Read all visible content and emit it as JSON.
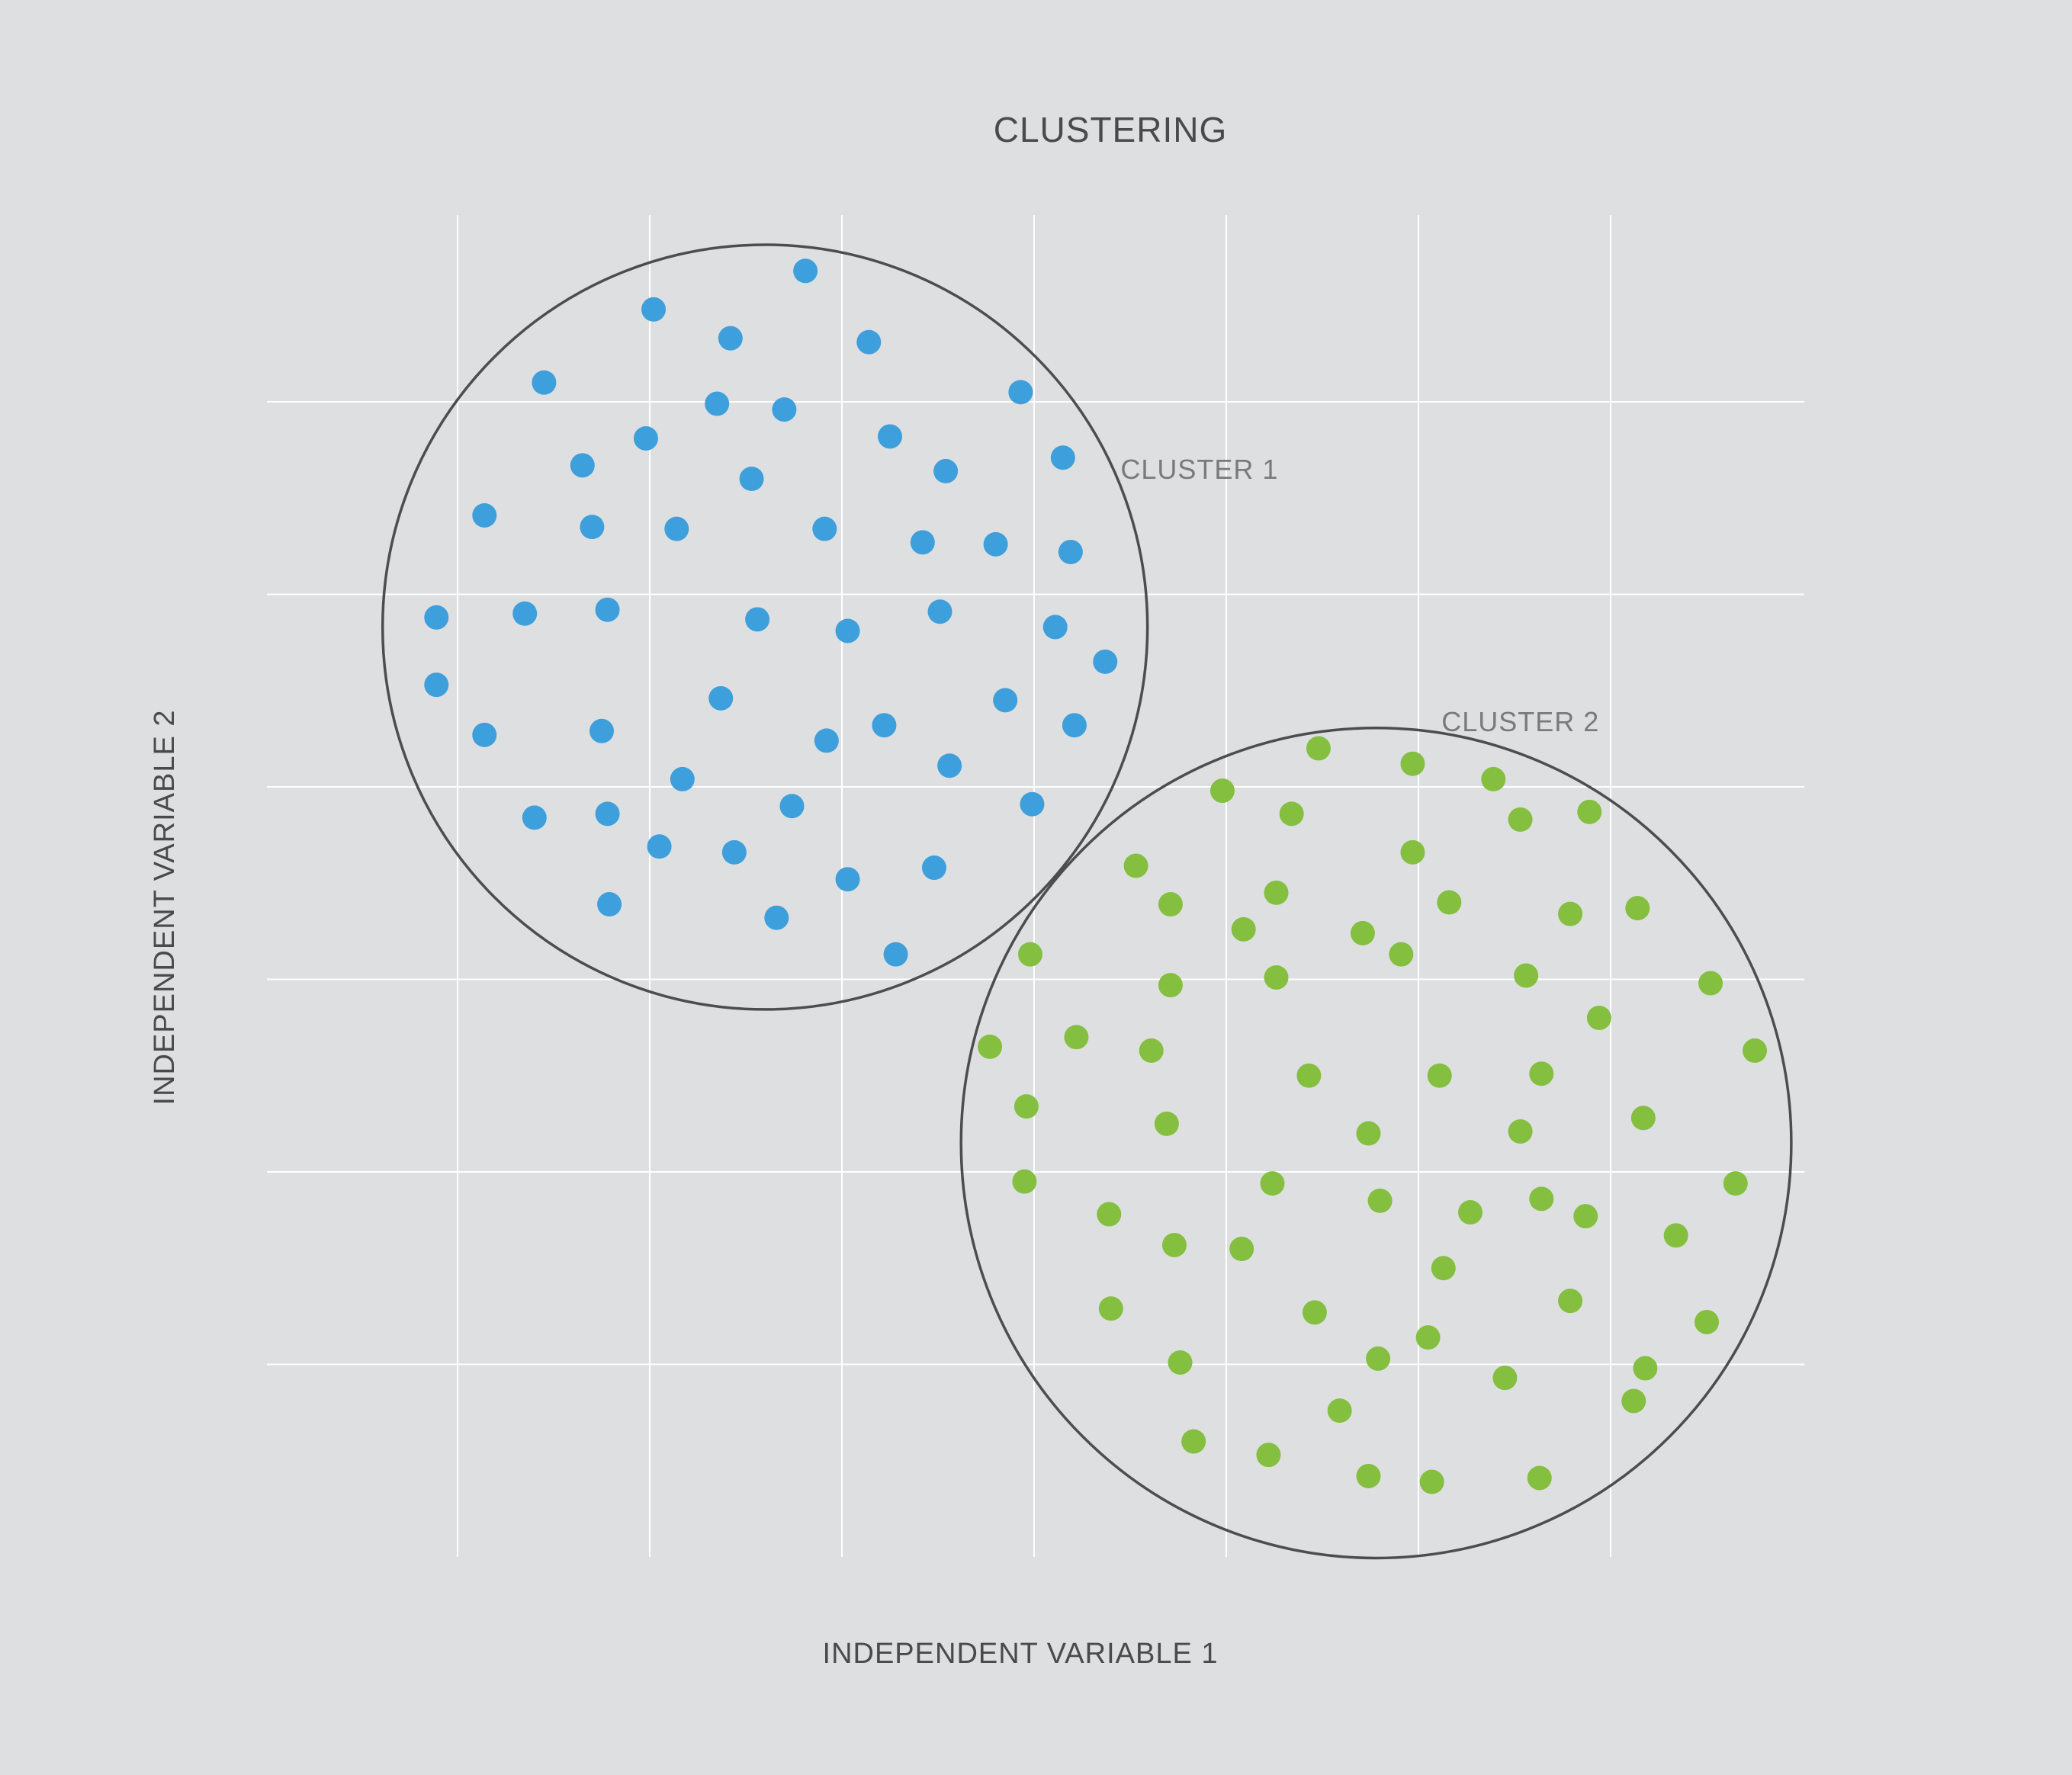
{
  "chart_data": {
    "type": "scatter",
    "title": "CLUSTERING",
    "xlabel": "INDEPENDENT VARIABLE 1",
    "ylabel": "INDEPENDENT VARIABLE 2",
    "xlim": [
      0,
      8
    ],
    "ylim": [
      0,
      7
    ],
    "grid": true,
    "tick_labels_shown": false,
    "series": [
      {
        "name": "CLUSTER 1",
        "color": "#3d9fdb",
        "points": [
          [
            2.81,
            6.68
          ],
          [
            2.02,
            6.48
          ],
          [
            2.42,
            6.33
          ],
          [
            3.14,
            6.31
          ],
          [
            1.45,
            6.1
          ],
          [
            2.35,
            5.99
          ],
          [
            2.7,
            5.96
          ],
          [
            3.93,
            6.05
          ],
          [
            1.98,
            5.81
          ],
          [
            3.25,
            5.82
          ],
          [
            1.65,
            5.67
          ],
          [
            3.54,
            5.64
          ],
          [
            2.53,
            5.6
          ],
          [
            4.15,
            5.71
          ],
          [
            1.14,
            5.41
          ],
          [
            1.7,
            5.35
          ],
          [
            2.14,
            5.34
          ],
          [
            2.91,
            5.34
          ],
          [
            3.42,
            5.27
          ],
          [
            3.8,
            5.26
          ],
          [
            4.19,
            5.22
          ],
          [
            0.89,
            4.88
          ],
          [
            1.35,
            4.9
          ],
          [
            1.78,
            4.92
          ],
          [
            2.56,
            4.87
          ],
          [
            3.03,
            4.81
          ],
          [
            3.51,
            4.91
          ],
          [
            4.11,
            4.83
          ],
          [
            4.37,
            4.65
          ],
          [
            0.89,
            4.53
          ],
          [
            2.37,
            4.46
          ],
          [
            1.14,
            4.27
          ],
          [
            1.75,
            4.29
          ],
          [
            2.92,
            4.24
          ],
          [
            3.22,
            4.32
          ],
          [
            3.85,
            4.45
          ],
          [
            4.21,
            4.32
          ],
          [
            2.17,
            4.04
          ],
          [
            3.56,
            4.11
          ],
          [
            1.4,
            3.84
          ],
          [
            1.78,
            3.86
          ],
          [
            2.74,
            3.9
          ],
          [
            3.99,
            3.91
          ],
          [
            2.05,
            3.69
          ],
          [
            2.44,
            3.66
          ],
          [
            3.03,
            3.52
          ],
          [
            3.48,
            3.58
          ],
          [
            1.79,
            3.39
          ],
          [
            2.66,
            3.32
          ],
          [
            3.28,
            3.13
          ]
        ]
      },
      {
        "name": "CLUSTER 2",
        "color": "#84bf3f",
        "points": [
          [
            5.48,
            4.2
          ],
          [
            5.97,
            4.12
          ],
          [
            6.39,
            4.04
          ],
          [
            4.98,
            3.98
          ],
          [
            5.34,
            3.86
          ],
          [
            6.53,
            3.83
          ],
          [
            6.89,
            3.87
          ],
          [
            5.97,
            3.66
          ],
          [
            4.53,
            3.59
          ],
          [
            5.26,
            3.45
          ],
          [
            6.16,
            3.4
          ],
          [
            6.79,
            3.34
          ],
          [
            7.14,
            3.37
          ],
          [
            4.71,
            3.39
          ],
          [
            5.09,
            3.26
          ],
          [
            5.71,
            3.24
          ],
          [
            3.98,
            3.13
          ],
          [
            5.26,
            3.01
          ],
          [
            5.91,
            3.13
          ],
          [
            6.56,
            3.02
          ],
          [
            7.52,
            2.98
          ],
          [
            4.71,
            2.97
          ],
          [
            6.94,
            2.8
          ],
          [
            3.77,
            2.65
          ],
          [
            4.22,
            2.7
          ],
          [
            4.61,
            2.63
          ],
          [
            5.43,
            2.5
          ],
          [
            6.11,
            2.5
          ],
          [
            6.64,
            2.51
          ],
          [
            7.75,
            2.63
          ],
          [
            3.96,
            2.34
          ],
          [
            4.69,
            2.25
          ],
          [
            5.74,
            2.2
          ],
          [
            6.53,
            2.21
          ],
          [
            7.17,
            2.28
          ],
          [
            3.95,
            1.95
          ],
          [
            5.24,
            1.94
          ],
          [
            5.8,
            1.85
          ],
          [
            6.64,
            1.86
          ],
          [
            7.65,
            1.94
          ],
          [
            4.39,
            1.78
          ],
          [
            6.27,
            1.79
          ],
          [
            6.87,
            1.77
          ],
          [
            7.34,
            1.67
          ],
          [
            4.73,
            1.62
          ],
          [
            5.08,
            1.6
          ],
          [
            6.13,
            1.5
          ],
          [
            4.4,
            1.29
          ],
          [
            5.46,
            1.27
          ],
          [
            6.79,
            1.33
          ],
          [
            7.5,
            1.22
          ],
          [
            4.76,
            1.01
          ],
          [
            5.79,
            1.03
          ],
          [
            6.45,
            0.93
          ],
          [
            6.05,
            1.14
          ],
          [
            7.18,
            0.98
          ],
          [
            5.59,
            0.76
          ],
          [
            7.12,
            0.81
          ],
          [
            4.83,
            0.6
          ],
          [
            5.22,
            0.53
          ],
          [
            5.74,
            0.42
          ],
          [
            6.07,
            0.39
          ],
          [
            6.63,
            0.41
          ]
        ]
      }
    ],
    "annotations": [
      {
        "text": "CLUSTER 1",
        "x": 4.45,
        "y": 5.6
      },
      {
        "text": "CLUSTER 2",
        "x": 6.12,
        "y": 4.29
      }
    ],
    "cluster_circles": [
      {
        "series": "CLUSTER 1",
        "cx": 2.6,
        "cy": 4.83,
        "r": 1.99
      },
      {
        "series": "CLUSTER 2",
        "cx": 5.78,
        "cy": 2.15,
        "r": 2.16
      }
    ]
  }
}
